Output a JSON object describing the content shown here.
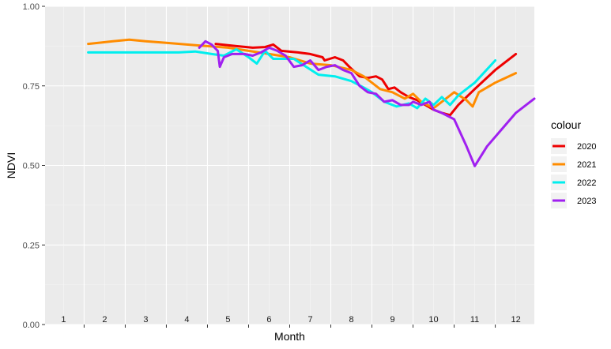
{
  "chart_data": {
    "type": "line",
    "xlabel": "Month",
    "ylabel": "NDVI",
    "ylim": [
      0,
      1
    ],
    "xlim": [
      0.55,
      12.45
    ],
    "y_ticks": [
      "0.00",
      "0.25",
      "0.50",
      "0.75",
      "1.00"
    ],
    "y_tick_values": [
      0,
      0.25,
      0.5,
      0.75,
      1.0
    ],
    "month_labels": [
      "1",
      "2",
      "3",
      "4",
      "5",
      "6",
      "7",
      "8",
      "9",
      "10",
      "11",
      "12"
    ],
    "legend_title": "colour",
    "legend_position": "right",
    "grid": true,
    "series": [
      {
        "name": "2020",
        "color": "#ee0000",
        "points": [
          [
            4.7,
            0.882
          ],
          [
            5.2,
            0.875
          ],
          [
            5.6,
            0.87
          ],
          [
            5.9,
            0.872
          ],
          [
            6.1,
            0.88
          ],
          [
            6.3,
            0.86
          ],
          [
            6.7,
            0.855
          ],
          [
            7.0,
            0.85
          ],
          [
            7.3,
            0.84
          ],
          [
            7.35,
            0.83
          ],
          [
            7.6,
            0.84
          ],
          [
            7.8,
            0.83
          ],
          [
            7.95,
            0.81
          ],
          [
            8.2,
            0.78
          ],
          [
            8.4,
            0.775
          ],
          [
            8.6,
            0.78
          ],
          [
            8.75,
            0.77
          ],
          [
            8.9,
            0.74
          ],
          [
            9.05,
            0.745
          ],
          [
            9.2,
            0.73
          ],
          [
            9.4,
            0.715
          ],
          [
            9.6,
            0.705
          ],
          [
            9.8,
            0.69
          ],
          [
            10.0,
            0.675
          ],
          [
            10.2,
            0.665
          ],
          [
            10.4,
            0.658
          ],
          [
            10.6,
            0.69
          ],
          [
            11.0,
            0.74
          ],
          [
            11.5,
            0.8
          ],
          [
            12.0,
            0.85
          ]
        ]
      },
      {
        "name": "2021",
        "color": "#ff8c00",
        "points": [
          [
            1.6,
            0.882
          ],
          [
            2.2,
            0.89
          ],
          [
            2.6,
            0.895
          ],
          [
            3.0,
            0.89
          ],
          [
            3.5,
            0.885
          ],
          [
            4.0,
            0.88
          ],
          [
            4.5,
            0.875
          ],
          [
            5.0,
            0.87
          ],
          [
            5.5,
            0.86
          ],
          [
            6.0,
            0.85
          ],
          [
            6.5,
            0.84
          ],
          [
            7.0,
            0.82
          ],
          [
            7.5,
            0.815
          ],
          [
            8.0,
            0.8
          ],
          [
            8.3,
            0.78
          ],
          [
            8.5,
            0.76
          ],
          [
            8.7,
            0.74
          ],
          [
            9.0,
            0.73
          ],
          [
            9.3,
            0.71
          ],
          [
            9.5,
            0.725
          ],
          [
            9.7,
            0.7
          ],
          [
            10.0,
            0.68
          ],
          [
            10.3,
            0.71
          ],
          [
            10.5,
            0.73
          ],
          [
            10.8,
            0.705
          ],
          [
            10.95,
            0.685
          ],
          [
            11.1,
            0.73
          ],
          [
            11.5,
            0.76
          ],
          [
            12.0,
            0.79
          ]
        ]
      },
      {
        "name": "2022",
        "color": "#00eeee",
        "points": [
          [
            1.6,
            0.855
          ],
          [
            2.2,
            0.855
          ],
          [
            3.0,
            0.855
          ],
          [
            3.8,
            0.855
          ],
          [
            4.2,
            0.858
          ],
          [
            4.6,
            0.85
          ],
          [
            4.9,
            0.845
          ],
          [
            5.2,
            0.865
          ],
          [
            5.5,
            0.84
          ],
          [
            5.7,
            0.82
          ],
          [
            5.9,
            0.86
          ],
          [
            6.1,
            0.835
          ],
          [
            6.6,
            0.835
          ],
          [
            6.9,
            0.81
          ],
          [
            7.2,
            0.785
          ],
          [
            7.6,
            0.78
          ],
          [
            8.0,
            0.765
          ],
          [
            8.3,
            0.745
          ],
          [
            8.5,
            0.73
          ],
          [
            8.8,
            0.7
          ],
          [
            9.1,
            0.685
          ],
          [
            9.4,
            0.695
          ],
          [
            9.6,
            0.68
          ],
          [
            9.8,
            0.71
          ],
          [
            10.0,
            0.69
          ],
          [
            10.2,
            0.715
          ],
          [
            10.4,
            0.69
          ],
          [
            10.6,
            0.72
          ],
          [
            11.0,
            0.76
          ],
          [
            11.5,
            0.83
          ]
        ]
      },
      {
        "name": "2023",
        "color": "#a020f0",
        "points": [
          [
            4.3,
            0.87
          ],
          [
            4.45,
            0.89
          ],
          [
            4.6,
            0.88
          ],
          [
            4.75,
            0.86
          ],
          [
            4.8,
            0.81
          ],
          [
            4.9,
            0.84
          ],
          [
            5.1,
            0.85
          ],
          [
            5.4,
            0.85
          ],
          [
            5.6,
            0.845
          ],
          [
            5.8,
            0.855
          ],
          [
            6.0,
            0.87
          ],
          [
            6.2,
            0.86
          ],
          [
            6.4,
            0.845
          ],
          [
            6.6,
            0.81
          ],
          [
            6.8,
            0.815
          ],
          [
            7.0,
            0.83
          ],
          [
            7.2,
            0.8
          ],
          [
            7.4,
            0.81
          ],
          [
            7.6,
            0.815
          ],
          [
            7.8,
            0.8
          ],
          [
            8.0,
            0.79
          ],
          [
            8.2,
            0.75
          ],
          [
            8.4,
            0.73
          ],
          [
            8.6,
            0.725
          ],
          [
            8.8,
            0.7
          ],
          [
            9.0,
            0.705
          ],
          [
            9.2,
            0.69
          ],
          [
            9.4,
            0.69
          ],
          [
            9.5,
            0.7
          ],
          [
            9.7,
            0.69
          ],
          [
            9.9,
            0.7
          ],
          [
            10.0,
            0.675
          ],
          [
            10.2,
            0.665
          ],
          [
            10.5,
            0.645
          ],
          [
            10.8,
            0.56
          ],
          [
            11.0,
            0.498
          ],
          [
            11.3,
            0.56
          ],
          [
            11.7,
            0.62
          ],
          [
            12.0,
            0.665
          ],
          [
            12.45,
            0.71
          ]
        ]
      }
    ]
  }
}
